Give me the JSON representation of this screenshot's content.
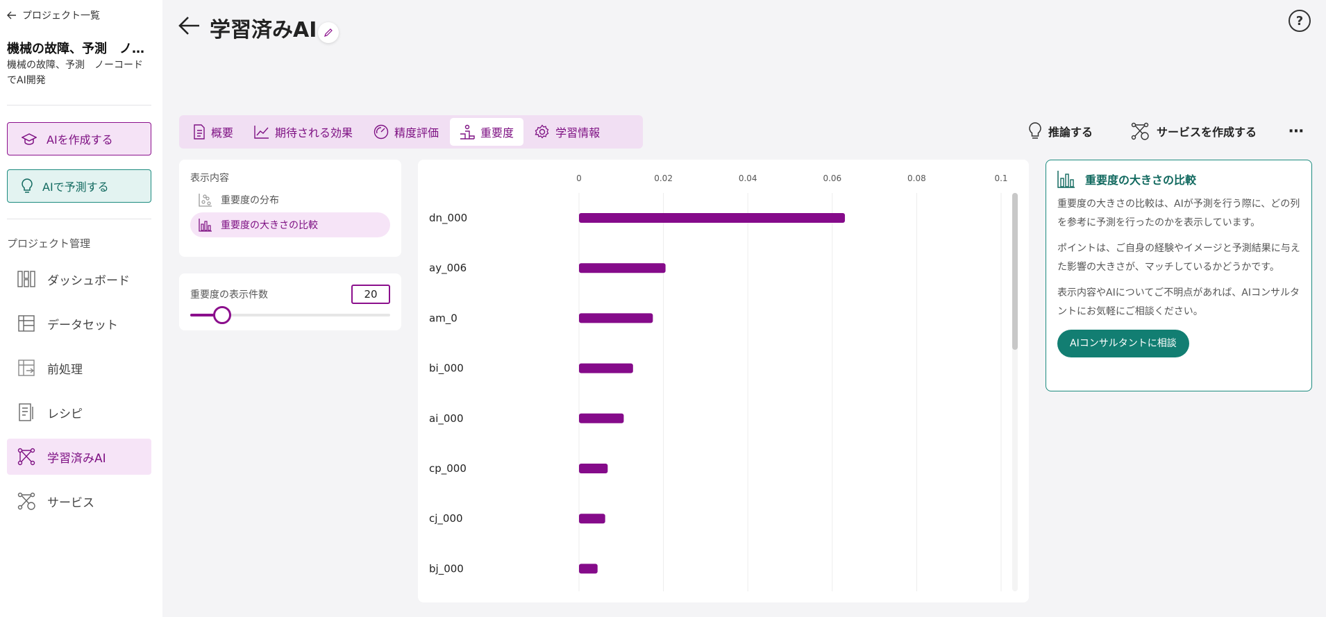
{
  "sidebar": {
    "back_label": "プロジェクト一覧",
    "project_title": "機械の故障、予測　ノーコードでAI開発",
    "project_desc": "機械の故障、予測　ノーコードでAI開発",
    "create_ai_label": "AIを作成する",
    "predict_ai_label": "AIで予測する",
    "section_label": "プロジェクト管理",
    "nav": [
      {
        "label": "ダッシュボード",
        "icon": "dashboard-icon"
      },
      {
        "label": "データセット",
        "icon": "dataset-icon"
      },
      {
        "label": "前処理",
        "icon": "preprocess-icon"
      },
      {
        "label": "レシピ",
        "icon": "recipe-icon"
      },
      {
        "label": "学習済みAI",
        "icon": "trained-ai-icon",
        "active": true
      },
      {
        "label": "サービス",
        "icon": "service-icon"
      }
    ]
  },
  "header": {
    "title": "学習済みAI"
  },
  "tabs": [
    {
      "label": "概要",
      "icon": "document-icon"
    },
    {
      "label": "期待される効果",
      "icon": "trend-icon"
    },
    {
      "label": "精度評価",
      "icon": "gauge-icon"
    },
    {
      "label": "重要度",
      "icon": "podium-icon",
      "active": true
    },
    {
      "label": "学習情報",
      "icon": "gear-icon"
    }
  ],
  "actions": {
    "infer_label": "推論する",
    "create_service_label": "サービスを作成する"
  },
  "display_panel": {
    "label": "表示内容",
    "options": [
      {
        "label": "重要度の分布",
        "icon": "distribution-icon"
      },
      {
        "label": "重要度の大きさの比較",
        "icon": "bar-chart-icon",
        "active": true
      }
    ]
  },
  "count_panel": {
    "label": "重要度の表示件数",
    "value": "20",
    "slider_fraction": 0.16
  },
  "chart_data": {
    "type": "bar",
    "orientation": "horizontal",
    "categories": [
      "dn_000",
      "ay_006",
      "am_0",
      "bi_000",
      "ai_000",
      "cp_000",
      "cj_000",
      "bj_000"
    ],
    "values": [
      0.063,
      0.0205,
      0.0175,
      0.0128,
      0.0106,
      0.0068,
      0.0062,
      0.0044
    ],
    "x_ticks": [
      "0",
      "0.02",
      "0.04",
      "0.06",
      "0.08",
      "0.1"
    ],
    "xlim": [
      0,
      0.1
    ],
    "grid": true,
    "color": "#850b8a"
  },
  "info": {
    "title": "重要度の大きさの比較",
    "p1": "重要度の大きさの比較は、AIが予測を行う際に、どの列を参考に予測を行ったのかを表示しています。",
    "p2": "ポイントは、ご自身の経験やイメージと予測結果に与えた影響の大きさが、マッチしているかどうかです。",
    "p3": "表示内容やAIについてご不明点があれば、AIコンサルタントにお気軽にご相談ください。",
    "button": "AIコンサルタントに相談"
  },
  "colors": {
    "brand_purple": "#8b0f8c",
    "brand_teal": "#127e72",
    "bar": "#850b8a"
  }
}
